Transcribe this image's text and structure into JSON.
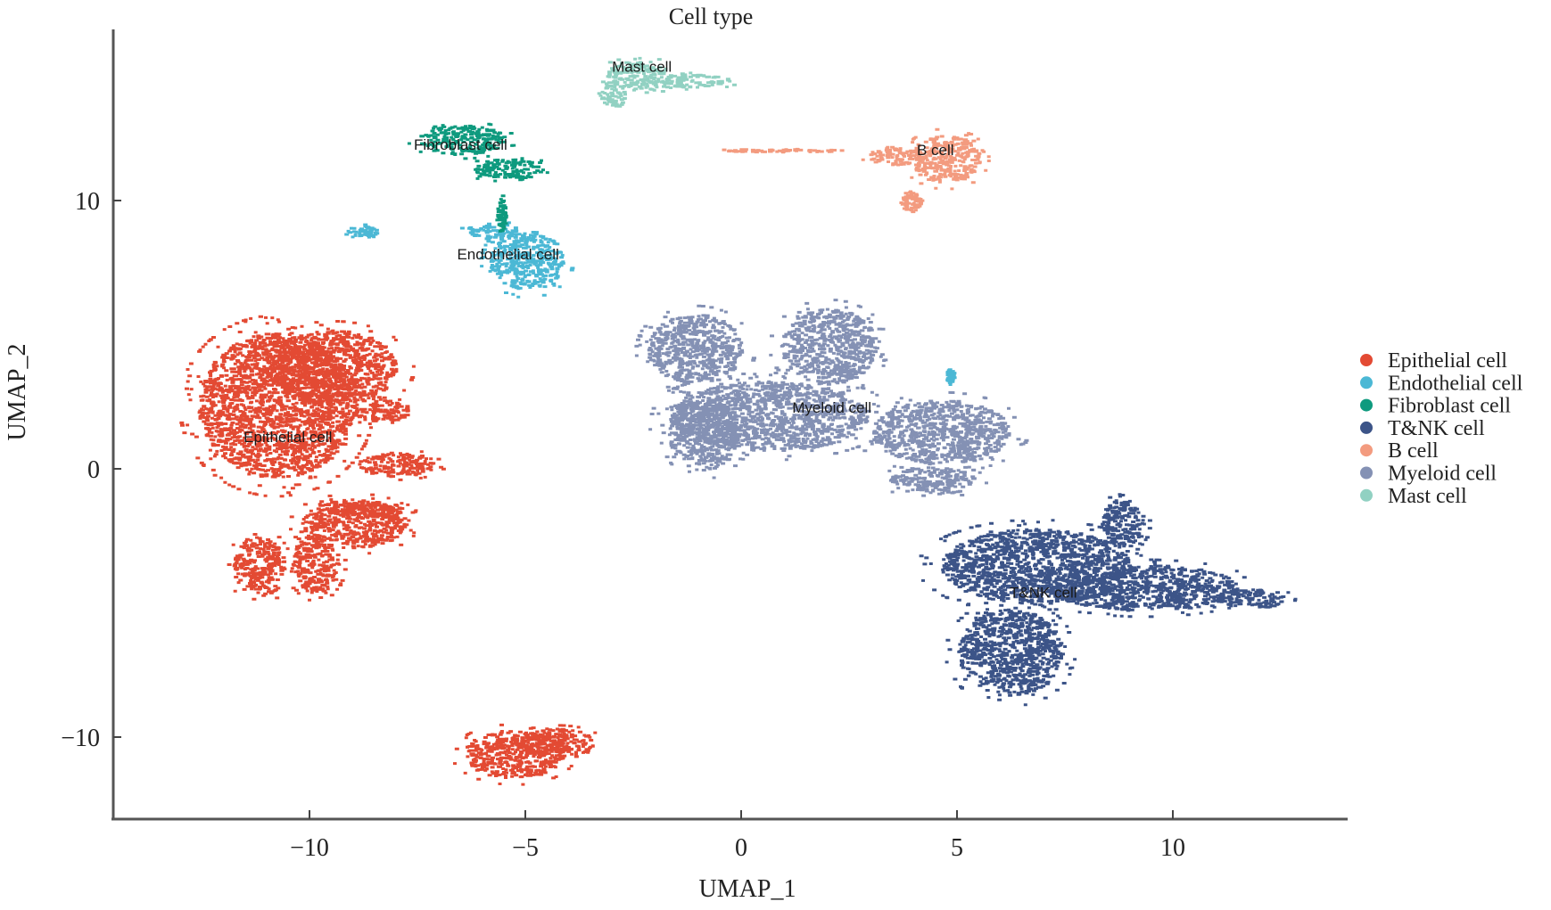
{
  "chart_data": {
    "type": "scatter",
    "title": "Cell type",
    "xlabel": "UMAP_1",
    "ylabel": "UMAP_2",
    "xlim": [
      -14.5,
      14.1
    ],
    "ylim": [
      -13.1,
      16.3
    ],
    "xticks": [
      -10,
      -5,
      0,
      5,
      10
    ],
    "xtick_labels": [
      "−10",
      "−5",
      "0",
      "5",
      "10"
    ],
    "yticks": [
      -10,
      0,
      10
    ],
    "ytick_labels": [
      "−10",
      "0",
      "10"
    ],
    "grid": false,
    "legend_position": "right",
    "series": [
      {
        "name": "Epithelial cell",
        "color": "#E34A33",
        "label": "Epithelial cell",
        "label_at": [
          -10.5,
          1.0
        ],
        "blobs": [
          [
            -10.8,
            2.4,
            1.8,
            2.7
          ],
          [
            -9.5,
            3.8,
            1.5,
            1.4
          ],
          [
            -8.4,
            2.2,
            0.7,
            0.4
          ],
          [
            -8.0,
            0.2,
            0.9,
            0.45
          ],
          [
            -9.0,
            -2.0,
            1.2,
            0.9
          ],
          [
            -11.2,
            -3.6,
            0.6,
            1.1
          ],
          [
            -9.9,
            -3.5,
            0.55,
            1.1
          ],
          [
            -8.7,
            -1.5,
            0.9,
            0.3
          ],
          [
            -5.3,
            -10.6,
            1.15,
            0.9
          ],
          [
            -4.3,
            -10.2,
            0.9,
            0.55
          ]
        ]
      },
      {
        "name": "Endothelial cell",
        "color": "#4BB8D5",
        "label": "Endothelial cell",
        "label_at": [
          -5.4,
          7.8
        ],
        "blobs": [
          [
            -5.0,
            7.8,
            0.85,
            1.1
          ],
          [
            -5.8,
            8.9,
            0.6,
            0.3
          ],
          [
            -8.8,
            8.9,
            0.35,
            0.2
          ],
          [
            4.8,
            3.5,
            0.08,
            0.25
          ]
        ]
      },
      {
        "name": "Fibroblast cell",
        "color": "#0E9A7E",
        "label": "Fibroblast cell",
        "label_at": [
          -6.5,
          11.9
        ],
        "blobs": [
          [
            -6.5,
            12.3,
            1.0,
            0.55
          ],
          [
            -5.4,
            11.2,
            0.8,
            0.4
          ],
          [
            -5.6,
            9.5,
            0.1,
            0.6
          ]
        ]
      },
      {
        "name": "T&NK cell",
        "color": "#3C5488",
        "label": "T&NK cell",
        "label_at": [
          7.0,
          -4.8
        ],
        "blobs": [
          [
            6.8,
            -3.6,
            2.2,
            1.4
          ],
          [
            9.3,
            -4.4,
            2.2,
            0.85
          ],
          [
            6.2,
            -6.8,
            1.2,
            1.6
          ],
          [
            8.8,
            -2.0,
            0.5,
            0.9
          ],
          [
            11.8,
            -4.8,
            0.8,
            0.35
          ]
        ]
      },
      {
        "name": "B cell",
        "color": "#F39B7F",
        "label": "B cell",
        "label_at": [
          4.5,
          11.7
        ],
        "blobs": [
          [
            4.7,
            11.6,
            0.8,
            0.9
          ],
          [
            3.5,
            11.7,
            0.6,
            0.35
          ],
          [
            3.9,
            10.0,
            0.25,
            0.4
          ],
          [
            1.0,
            11.9,
            1.5,
            0.05
          ]
        ]
      },
      {
        "name": "Myeloid cell",
        "color": "#8491B4",
        "label": "Myeloid cell",
        "label_at": [
          2.1,
          2.1
        ],
        "blobs": [
          [
            -1.1,
            4.5,
            1.1,
            1.3
          ],
          [
            2.0,
            4.6,
            1.1,
            1.4
          ],
          [
            0.6,
            2.0,
            2.3,
            1.3
          ],
          [
            4.6,
            1.4,
            1.6,
            1.2
          ],
          [
            -0.9,
            1.3,
            0.8,
            1.3
          ],
          [
            4.4,
            -0.4,
            1.0,
            0.5
          ]
        ]
      },
      {
        "name": "Mast cell",
        "color": "#91D1C2",
        "label": "Mast cell",
        "label_at": [
          -2.3,
          14.8
        ],
        "blobs": [
          [
            -2.4,
            14.7,
            0.8,
            0.55
          ],
          [
            -1.1,
            14.5,
            0.8,
            0.25
          ],
          [
            -3.0,
            14.0,
            0.3,
            0.5
          ]
        ]
      }
    ]
  }
}
